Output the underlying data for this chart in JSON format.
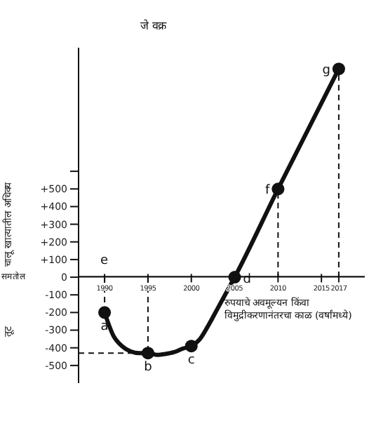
{
  "chart_data": {
    "type": "line",
    "title": "जे वक्र",
    "xlabel": "रुपयाचे अवमूल्यन किंवा विमुद्रीकरणानंतरचा काळ (वर्षांमध्ये)",
    "ylabel": "चालू खात्यातील अधिक्य",
    "annotations": [
      "समतोल",
      "तूट",
      "e",
      {
        "text": "a",
        "x": 1990,
        "y": -200
      },
      {
        "text": "b",
        "x": 1995,
        "y": -430
      },
      {
        "text": "c",
        "x": 2000,
        "y": -390
      },
      {
        "text": "d",
        "x": 2005,
        "y": 0
      },
      {
        "text": "f",
        "x": 2010,
        "y": 500
      },
      {
        "text": "g",
        "x": 2017,
        "y": 1180
      }
    ],
    "xlim": [
      1987,
      2020
    ],
    "xticks": [
      1990,
      1995,
      2000,
      2005,
      2010,
      2015,
      2017
    ],
    "ylim": [
      -600,
      1300
    ],
    "yticks": [
      {
        "value": -500,
        "label": "-500"
      },
      {
        "value": -400,
        "label": "-400"
      },
      {
        "value": -300,
        "label": "-300"
      },
      {
        "value": -200,
        "label": "-200"
      },
      {
        "value": -100,
        "label": "-100"
      },
      0,
      {
        "value": 100,
        "label": "+100"
      },
      {
        "value": 200,
        "label": "+200"
      },
      {
        "value": 300,
        "label": "+300"
      },
      {
        "value": 400,
        "label": "+400"
      },
      {
        "value": 500,
        "label": "+500"
      },
      {
        "value": 600,
        "label": null
      }
    ],
    "grid": false,
    "legend": false,
    "series": [
      {
        "type": "line",
        "color": "#111111",
        "marker": "none",
        "x": [
          1990,
          1991,
          1992,
          1993,
          1994,
          1995,
          1996,
          1997,
          1998,
          1999,
          2000,
          2001,
          2002,
          2003,
          2004,
          2005,
          2010,
          2017
        ],
        "values": [
          -200,
          -330,
          -390,
          -420,
          -430,
          -430,
          -440,
          -435,
          -425,
          -405,
          -390,
          -350,
          -270,
          -180,
          -90,
          0,
          500,
          1180
        ]
      },
      {
        "type": "scatter",
        "color": "#111111",
        "marker": "circle",
        "x": [
          1990,
          1995,
          2000,
          2005,
          2010,
          2017
        ],
        "values": [
          -200,
          -430,
          -390,
          0,
          500,
          1180
        ]
      }
    ],
    "ref_lines": [
      {
        "axis": "x",
        "value": 1990,
        "color": "#111111",
        "line_style": "dashed"
      },
      {
        "axis": "x",
        "value": 1995,
        "color": "#111111",
        "line_style": "dashed"
      },
      {
        "axis": "x",
        "value": 2010,
        "color": "#111111",
        "line_style": "dashed"
      },
      {
        "axis": "x",
        "value": 2017,
        "color": "#111111",
        "line_style": "dashed"
      },
      {
        "axis": "y",
        "value": -430,
        "color": "#111111",
        "line_style": "dashed"
      }
    ]
  }
}
